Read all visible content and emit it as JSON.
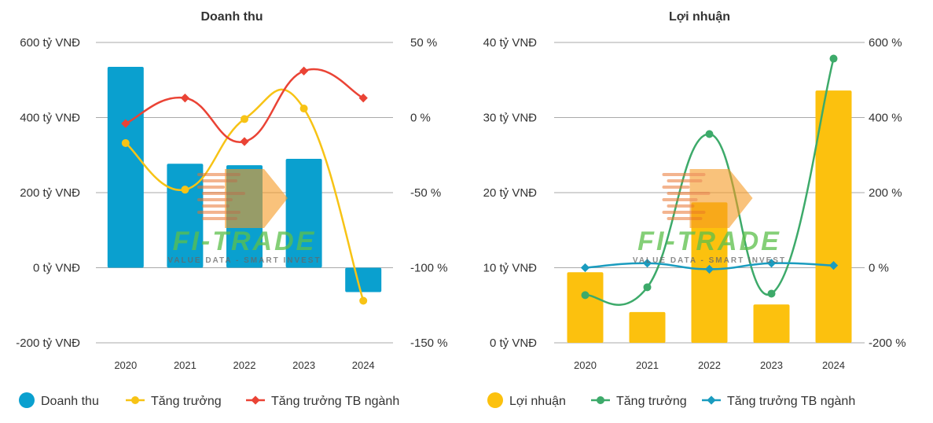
{
  "colors": {
    "revenue": "#0aa0cf",
    "revenue_growth": "#f7c315",
    "industry_left": "#ea4335",
    "profit": "#fcc10e",
    "profit_growth": "#3daa6a",
    "industry_right": "#1a9cbf",
    "grid": "#aaaaaa",
    "watermark_green": "#5cc04a",
    "watermark_orange": "#f59a23"
  },
  "watermark": {
    "brand": "FI-TRADE",
    "tagline": "VALUE DATA - SMART INVEST"
  },
  "chart_data": [
    {
      "type": "bar",
      "title": "Doanh thu",
      "categories": [
        "2020",
        "2021",
        "2022",
        "2023",
        "2024"
      ],
      "ylim": [
        -200,
        600
      ],
      "yticks": [
        600,
        400,
        200,
        0,
        -200
      ],
      "ytick_labels": [
        "600 tỷ VNĐ",
        "400 tỷ VNĐ",
        "200 tỷ VNĐ",
        "0 tỷ VNĐ",
        "-200 tỷ VNĐ"
      ],
      "y2lim": [
        -150,
        50
      ],
      "y2ticks": [
        50,
        0,
        -50,
        -100,
        -150
      ],
      "y2tick_labels": [
        "50 %",
        "0 %",
        "-50 %",
        "-100 %",
        "-150 %"
      ],
      "grid": true,
      "legend_position": "bottom-left",
      "series": [
        {
          "name": "Doanh thu",
          "kind": "bar",
          "axis": "left",
          "color_key": "revenue",
          "values": [
            535,
            277,
            273,
            290,
            -65
          ]
        },
        {
          "name": "Tăng trưởng",
          "kind": "line",
          "marker": "circle",
          "axis": "right",
          "color_key": "revenue_growth",
          "values": [
            -17,
            -48,
            -1,
            6,
            -122
          ]
        },
        {
          "name": "Tăng trưởng TB ngành",
          "kind": "line",
          "marker": "diamond",
          "axis": "right",
          "color_key": "industry_left",
          "values": [
            -4,
            13,
            -16,
            31,
            13
          ]
        }
      ]
    },
    {
      "type": "bar",
      "title": "Lợi nhuận",
      "categories": [
        "2020",
        "2021",
        "2022",
        "2023",
        "2024"
      ],
      "ylim": [
        0,
        40
      ],
      "yticks": [
        40,
        30,
        20,
        10,
        0
      ],
      "ytick_labels": [
        "40 tỷ VNĐ",
        "30 tỷ VNĐ",
        "20 tỷ VNĐ",
        "10 tỷ VNĐ",
        "0 tỷ VNĐ"
      ],
      "y2lim": [
        -200,
        600
      ],
      "y2ticks": [
        600,
        400,
        200,
        0,
        -200
      ],
      "y2tick_labels": [
        "600 %",
        "400 %",
        "200 %",
        "0 %",
        "-200 %"
      ],
      "grid": true,
      "legend_position": "bottom-left",
      "series": [
        {
          "name": "Lợi nhuận",
          "kind": "bar",
          "axis": "left",
          "color_key": "profit",
          "values": [
            9.4,
            4.1,
            18.7,
            5.1,
            33.6
          ]
        },
        {
          "name": "Tăng trưởng",
          "kind": "line",
          "marker": "circle",
          "axis": "right",
          "color_key": "profit_growth",
          "values": [
            -73,
            -52,
            356,
            -69,
            557
          ]
        },
        {
          "name": "Tăng trưởng TB ngành",
          "kind": "line",
          "marker": "diamond",
          "axis": "right",
          "color_key": "industry_right",
          "values": [
            0,
            12,
            -4,
            12,
            6
          ]
        }
      ]
    }
  ]
}
